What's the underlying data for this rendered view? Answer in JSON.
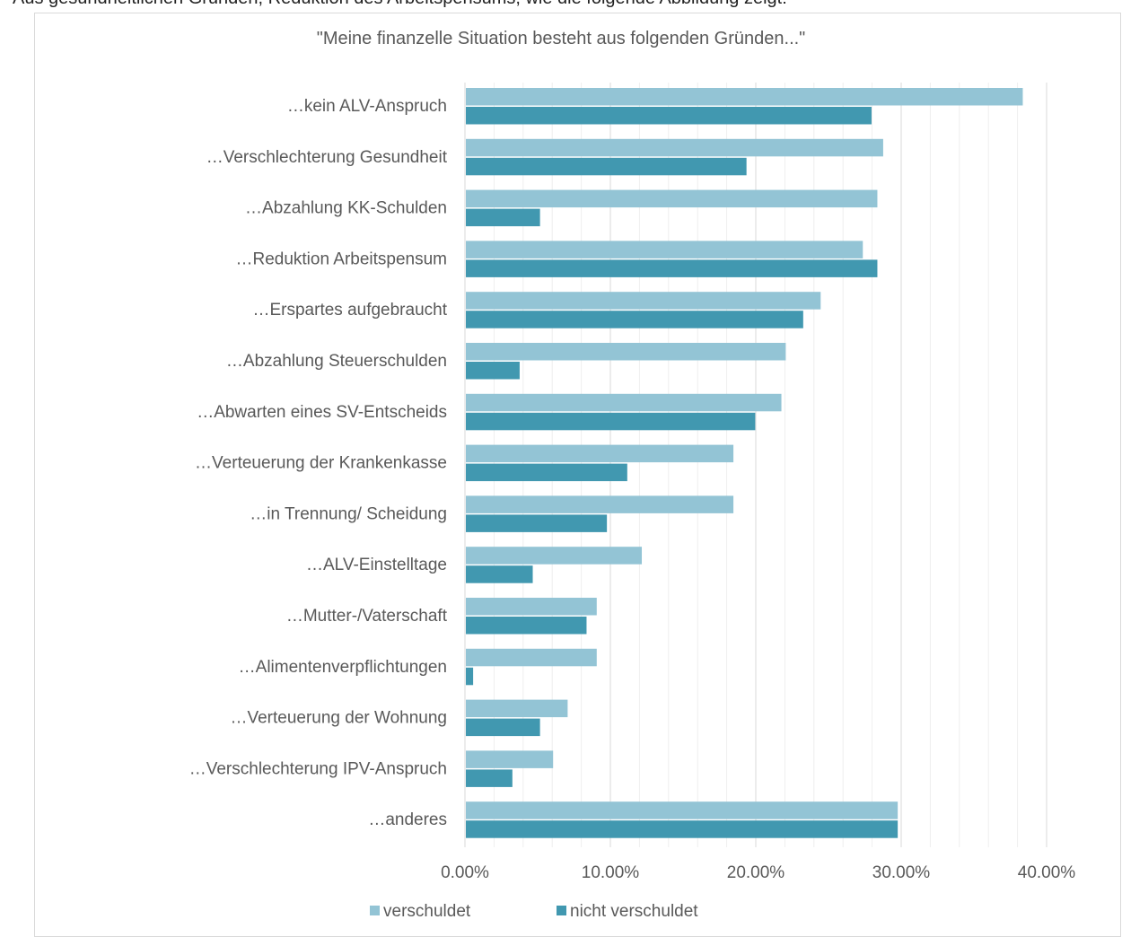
{
  "page": {
    "cropped_caption": "Aus gesundheitlichen Gründen, Reduktion des Arbeitspensums, wie die folgende Abbildung zeigt:"
  },
  "chart_data": {
    "type": "bar",
    "orientation": "horizontal",
    "title": "\"Meine finanzelle Situation besteht aus folgenden Gründen...\"",
    "xlabel": "",
    "ylabel": "",
    "xlim": [
      0,
      40
    ],
    "x_tick_labels": [
      "0.00%",
      "10.00%",
      "20.00%",
      "30.00%",
      "40.00%"
    ],
    "grid": true,
    "legend_position": "bottom",
    "categories": [
      "…kein ALV-Anspruch",
      "…Verschlechterung Gesundheit",
      "…Abzahlung KK-Schulden",
      "…Reduktion Arbeitspensum",
      "…Erspartes aufgebraucht",
      "…Abzahlung Steuerschulden",
      "…Abwarten eines SV-Entscheids",
      "…Verteuerung der Krankenkasse",
      "…in Trennung/ Scheidung",
      "…ALV-Einstelltage",
      "…Mutter-/Vaterschaft",
      "…Alimentenverpflichtungen",
      "…Verteuerung der Wohnung",
      "…Verschlechterung IPV-Anspruch",
      "…anderes"
    ],
    "series": [
      {
        "name": "verschuldet",
        "color": "#93c4d5",
        "values": [
          38.3,
          28.7,
          28.3,
          27.3,
          24.4,
          22.0,
          21.7,
          18.4,
          18.4,
          12.1,
          9.0,
          9.0,
          7.0,
          6.0,
          29.7
        ]
      },
      {
        "name": "nicht verschuldet",
        "color": "#4198b0",
        "values": [
          27.9,
          19.3,
          5.1,
          28.3,
          23.2,
          3.7,
          19.9,
          11.1,
          9.7,
          4.6,
          8.3,
          0.5,
          5.1,
          3.2,
          29.7
        ]
      }
    ]
  }
}
